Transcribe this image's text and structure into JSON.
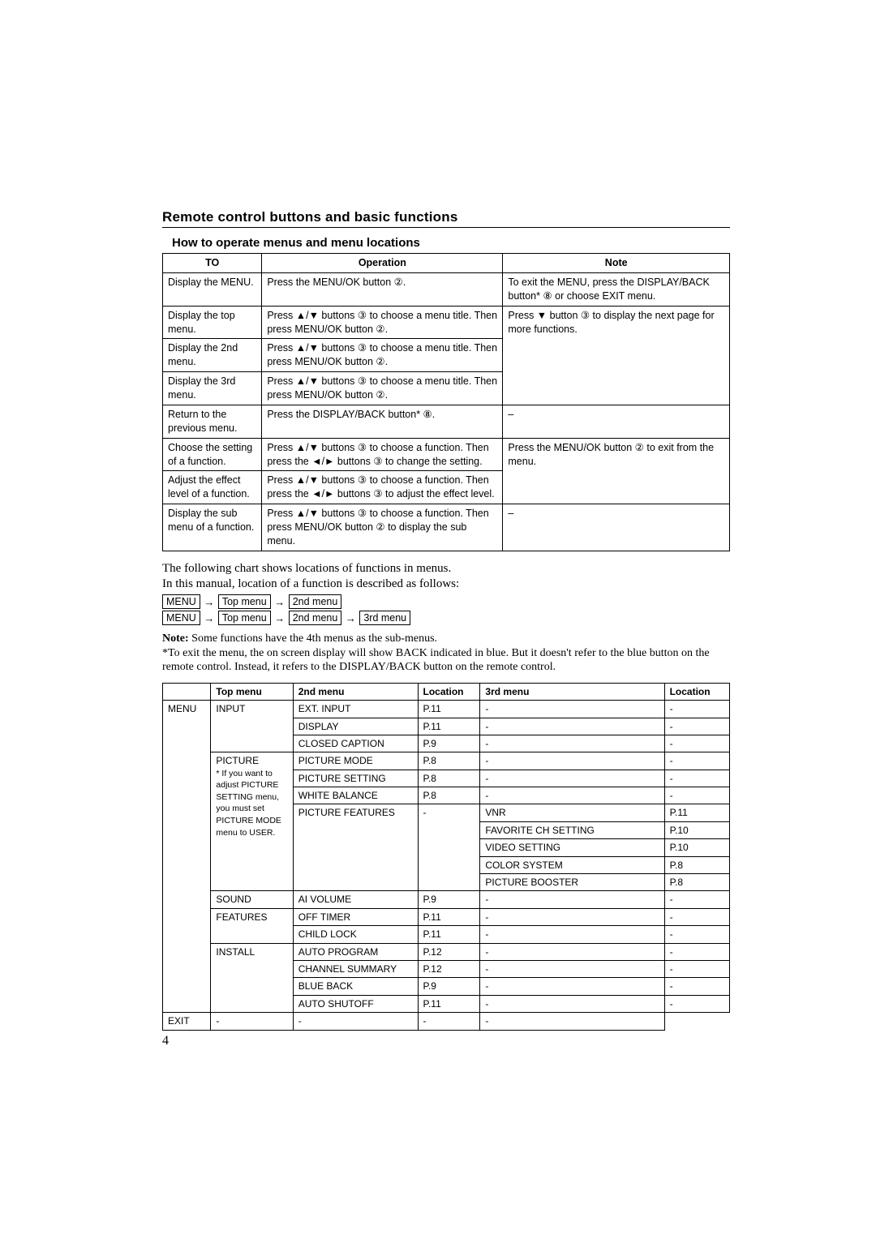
{
  "section_title": "Remote control buttons and basic functions",
  "subsection_title": "How to operate menus and menu locations",
  "page_number": "4",
  "ops_table": {
    "headers": {
      "to": "TO",
      "operation": "Operation",
      "note": "Note"
    },
    "rows": {
      "r1": {
        "to": "Display the MENU.",
        "op": "Press the MENU/OK button ②.",
        "note": "To exit the MENU, press the DISPLAY/BACK button* ⑧ or choose EXIT menu."
      },
      "r2": {
        "to": "Display the top menu.",
        "op": "Press ▲/▼ buttons ③ to choose a menu title. Then press MENU/OK button ②.",
        "note": "Press ▼ button ③ to display the next page for more functions."
      },
      "r3": {
        "to": "Display the 2nd menu.",
        "op": "Press ▲/▼ buttons ③ to choose a menu title. Then press MENU/OK button ②."
      },
      "r4": {
        "to": "Display the 3rd menu.",
        "op": "Press ▲/▼ buttons ③ to choose a menu title. Then press MENU/OK button ②."
      },
      "r5": {
        "to": "Return to the previous menu.",
        "op": "Press the DISPLAY/BACK button* ⑧.",
        "note": "–"
      },
      "r6": {
        "to": "Choose the setting of a function.",
        "op": "Press ▲/▼ buttons ③ to choose a function. Then press the ◄/► buttons ③ to change the setting.",
        "note": "Press the MENU/OK button ② to exit from the menu."
      },
      "r7": {
        "to": "Adjust the effect level of a function.",
        "op": "Press ▲/▼ buttons ③ to choose a function. Then press the ◄/► buttons ③ to adjust the effect level."
      },
      "r8": {
        "to": "Display the sub menu of a function.",
        "op": "Press ▲/▼ buttons ③ to choose a function. Then press MENU/OK button ② to display the sub menu.",
        "note": "–"
      }
    }
  },
  "intro": {
    "line1": "The following chart shows locations of functions in menus.",
    "line2": "In this manual, location of a function is described as follows:"
  },
  "path": {
    "menu": "MENU",
    "top": "Top menu",
    "second": "2nd menu",
    "third": "3rd menu"
  },
  "note_block": {
    "label": "Note:",
    "l1": " Some functions have the 4th menus as the sub-menus.",
    "l2": "*To exit the menu, the on screen display will show BACK indicated in blue. But it doesn't refer to the blue button on the remote control. Instead, it refers to the DISPLAY/BACK button on the remote control."
  },
  "loc_table": {
    "headers": {
      "blank": "",
      "top": "Top menu",
      "second": "2nd menu",
      "loc1": "Location",
      "third": "3rd menu",
      "loc2": "Location"
    },
    "menu_label": "MENU",
    "input": {
      "label": "INPUT",
      "rows": {
        "ext": {
          "m2": "EXT. INPUT",
          "loc1": "P.11",
          "m3": "-",
          "loc2": "-"
        },
        "disp": {
          "m2": "DISPLAY",
          "loc1": "P.11",
          "m3": "-",
          "loc2": "-"
        },
        "cc": {
          "m2": "CLOSED CAPTION",
          "loc1": "P.9",
          "m3": "-",
          "loc2": "-"
        }
      }
    },
    "picture": {
      "label": "PICTURE",
      "sublabel": "* If you want to adjust PICTURE SETTING menu, you must set PICTURE MODE menu to USER.",
      "rows": {
        "mode": {
          "m2": "PICTURE MODE",
          "loc1": "P.8",
          "m3": "-",
          "loc2": "-"
        },
        "setting": {
          "m2": "PICTURE SETTING",
          "loc1": "P.8",
          "m3": "-",
          "loc2": "-"
        },
        "wb": {
          "m2": "WHITE BALANCE",
          "loc1": "P.8",
          "m3": "-",
          "loc2": "-"
        },
        "features": {
          "m2": "PICTURE FEATURES",
          "loc1": "-",
          "third": {
            "vnr": {
              "m3": "VNR",
              "loc2": "P.11"
            },
            "fav": {
              "m3": "FAVORITE CH SETTING",
              "loc2": "P.10"
            },
            "vid": {
              "m3": "VIDEO SETTING",
              "loc2": "P.10"
            },
            "csys": {
              "m3": "COLOR SYSTEM",
              "loc2": "P.8"
            },
            "pboost": {
              "m3": "PICTURE BOOSTER",
              "loc2": "P.8"
            }
          }
        }
      }
    },
    "sound": {
      "label": "SOUND",
      "ai": {
        "m2": "AI VOLUME",
        "loc1": "P.9",
        "m3": "-",
        "loc2": "-"
      }
    },
    "features": {
      "label": "FEATURES",
      "rows": {
        "off": {
          "m2": "OFF TIMER",
          "loc1": "P.11",
          "m3": "-",
          "loc2": "-"
        },
        "child": {
          "m2": "CHILD LOCK",
          "loc1": "P.11",
          "m3": "-",
          "loc2": "-"
        }
      }
    },
    "install": {
      "label": "INSTALL",
      "rows": {
        "auto": {
          "m2": "AUTO PROGRAM",
          "loc1": "P.12",
          "m3": "-",
          "loc2": "-"
        },
        "chsum": {
          "m2": "CHANNEL SUMMARY",
          "loc1": "P.12",
          "m3": "-",
          "loc2": "-"
        },
        "blue": {
          "m2": "BLUE BACK",
          "loc1": "P.9",
          "m3": "-",
          "loc2": "-"
        },
        "ashut": {
          "m2": "AUTO SHUTOFF",
          "loc1": "P.11",
          "m3": "-",
          "loc2": "-"
        }
      }
    },
    "exit": {
      "label": "EXIT",
      "m2": "-",
      "loc1": "-",
      "m3": "-",
      "loc2": "-"
    }
  }
}
